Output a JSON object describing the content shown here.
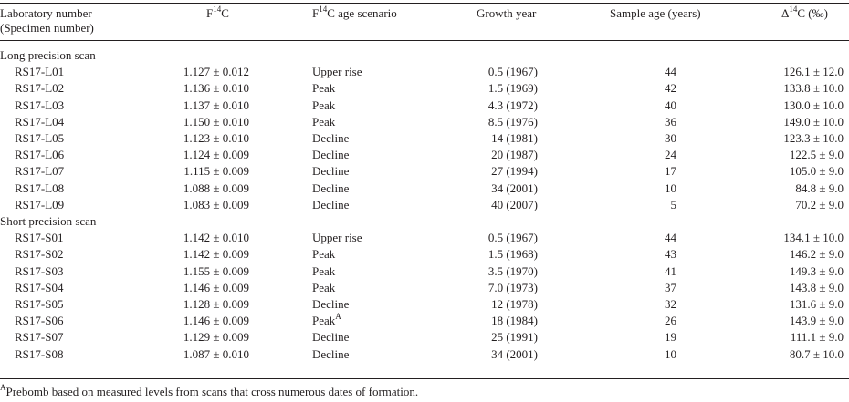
{
  "headers": {
    "lab_number": "Laboratory number",
    "specimen_number": "(Specimen number)",
    "f14c": "F",
    "f14c_sup": "14",
    "f14c_tail": "C",
    "scenario": "F",
    "scenario_sup": "14",
    "scenario_tail": "C age scenario",
    "growth_year": "Growth year",
    "sample_age": "Sample age (years)",
    "delta": "Δ",
    "delta_sup": "14",
    "delta_tail": "C (‰)"
  },
  "sections": [
    {
      "title": "Long precision scan",
      "rows": [
        {
          "id": "RS17-L01",
          "f14c": "1.127 ± 0.012",
          "scenario": "Upper rise",
          "scenario_sup": "",
          "growth_year": "0.5 (1967)",
          "sample_age": "44",
          "delta": "126.1 ± 12.0"
        },
        {
          "id": "RS17-L02",
          "f14c": "1.136 ± 0.010",
          "scenario": "Peak",
          "scenario_sup": "",
          "growth_year": "1.5 (1969)",
          "sample_age": "42",
          "delta": "133.8 ± 10.0"
        },
        {
          "id": "RS17-L03",
          "f14c": "1.137 ± 0.010",
          "scenario": "Peak",
          "scenario_sup": "",
          "growth_year": "4.3 (1972)",
          "sample_age": "40",
          "delta": "130.0 ± 10.0"
        },
        {
          "id": "RS17-L04",
          "f14c": "1.150 ± 0.010",
          "scenario": "Peak",
          "scenario_sup": "",
          "growth_year": "8.5 (1976)",
          "sample_age": "36",
          "delta": "149.0 ± 10.0"
        },
        {
          "id": "RS17-L05",
          "f14c": "1.123 ± 0.010",
          "scenario": "Decline",
          "scenario_sup": "",
          "growth_year": "14 (1981)",
          "sample_age": "30",
          "delta": "123.3 ± 10.0"
        },
        {
          "id": "RS17-L06",
          "f14c": "1.124 ± 0.009",
          "scenario": "Decline",
          "scenario_sup": "",
          "growth_year": "20 (1987)",
          "sample_age": "24",
          "delta": "122.5 ± 9.0"
        },
        {
          "id": "RS17-L07",
          "f14c": "1.115 ± 0.009",
          "scenario": "Decline",
          "scenario_sup": "",
          "growth_year": "27 (1994)",
          "sample_age": "17",
          "delta": "105.0 ± 9.0"
        },
        {
          "id": "RS17-L08",
          "f14c": "1.088 ± 0.009",
          "scenario": "Decline",
          "scenario_sup": "",
          "growth_year": "34 (2001)",
          "sample_age": "10",
          "delta": "84.8 ± 9.0"
        },
        {
          "id": "RS17-L09",
          "f14c": "1.083 ± 0.009",
          "scenario": "Decline",
          "scenario_sup": "",
          "growth_year": "40 (2007)",
          "sample_age": "5",
          "delta": "70.2 ± 9.0"
        }
      ]
    },
    {
      "title": "Short precision scan",
      "rows": [
        {
          "id": "RS17-S01",
          "f14c": "1.142 ± 0.010",
          "scenario": "Upper rise",
          "scenario_sup": "",
          "growth_year": "0.5 (1967)",
          "sample_age": "44",
          "delta": "134.1 ± 10.0"
        },
        {
          "id": "RS17-S02",
          "f14c": "1.142 ± 0.009",
          "scenario": "Peak",
          "scenario_sup": "",
          "growth_year": "1.5 (1968)",
          "sample_age": "43",
          "delta": "146.2 ± 9.0"
        },
        {
          "id": "RS17-S03",
          "f14c": "1.155 ± 0.009",
          "scenario": "Peak",
          "scenario_sup": "",
          "growth_year": "3.5 (1970)",
          "sample_age": "41",
          "delta": "149.3 ± 9.0"
        },
        {
          "id": "RS17-S04",
          "f14c": "1.146 ± 0.009",
          "scenario": "Peak",
          "scenario_sup": "",
          "growth_year": "7.0 (1973)",
          "sample_age": "37",
          "delta": "143.8 ± 9.0"
        },
        {
          "id": "RS17-S05",
          "f14c": "1.128 ± 0.009",
          "scenario": "Decline",
          "scenario_sup": "",
          "growth_year": "12 (1978)",
          "sample_age": "32",
          "delta": "131.6 ± 9.0"
        },
        {
          "id": "RS17-S06",
          "f14c": "1.146 ± 0.009",
          "scenario": "Peak",
          "scenario_sup": "A",
          "growth_year": "18 (1984)",
          "sample_age": "26",
          "delta": "143.9 ± 9.0"
        },
        {
          "id": "RS17-S07",
          "f14c": "1.129 ± 0.009",
          "scenario": "Decline",
          "scenario_sup": "",
          "growth_year": "25 (1991)",
          "sample_age": "19",
          "delta": "111.1 ± 9.0"
        },
        {
          "id": "RS17-S08",
          "f14c": "1.087 ± 0.010",
          "scenario": "Decline",
          "scenario_sup": "",
          "growth_year": "34 (2001)",
          "sample_age": "10",
          "delta": "80.7 ± 10.0"
        }
      ]
    }
  ],
  "footnote": {
    "marker": "A",
    "text": "Prebomb based on measured levels from scans that cross numerous dates of formation."
  }
}
